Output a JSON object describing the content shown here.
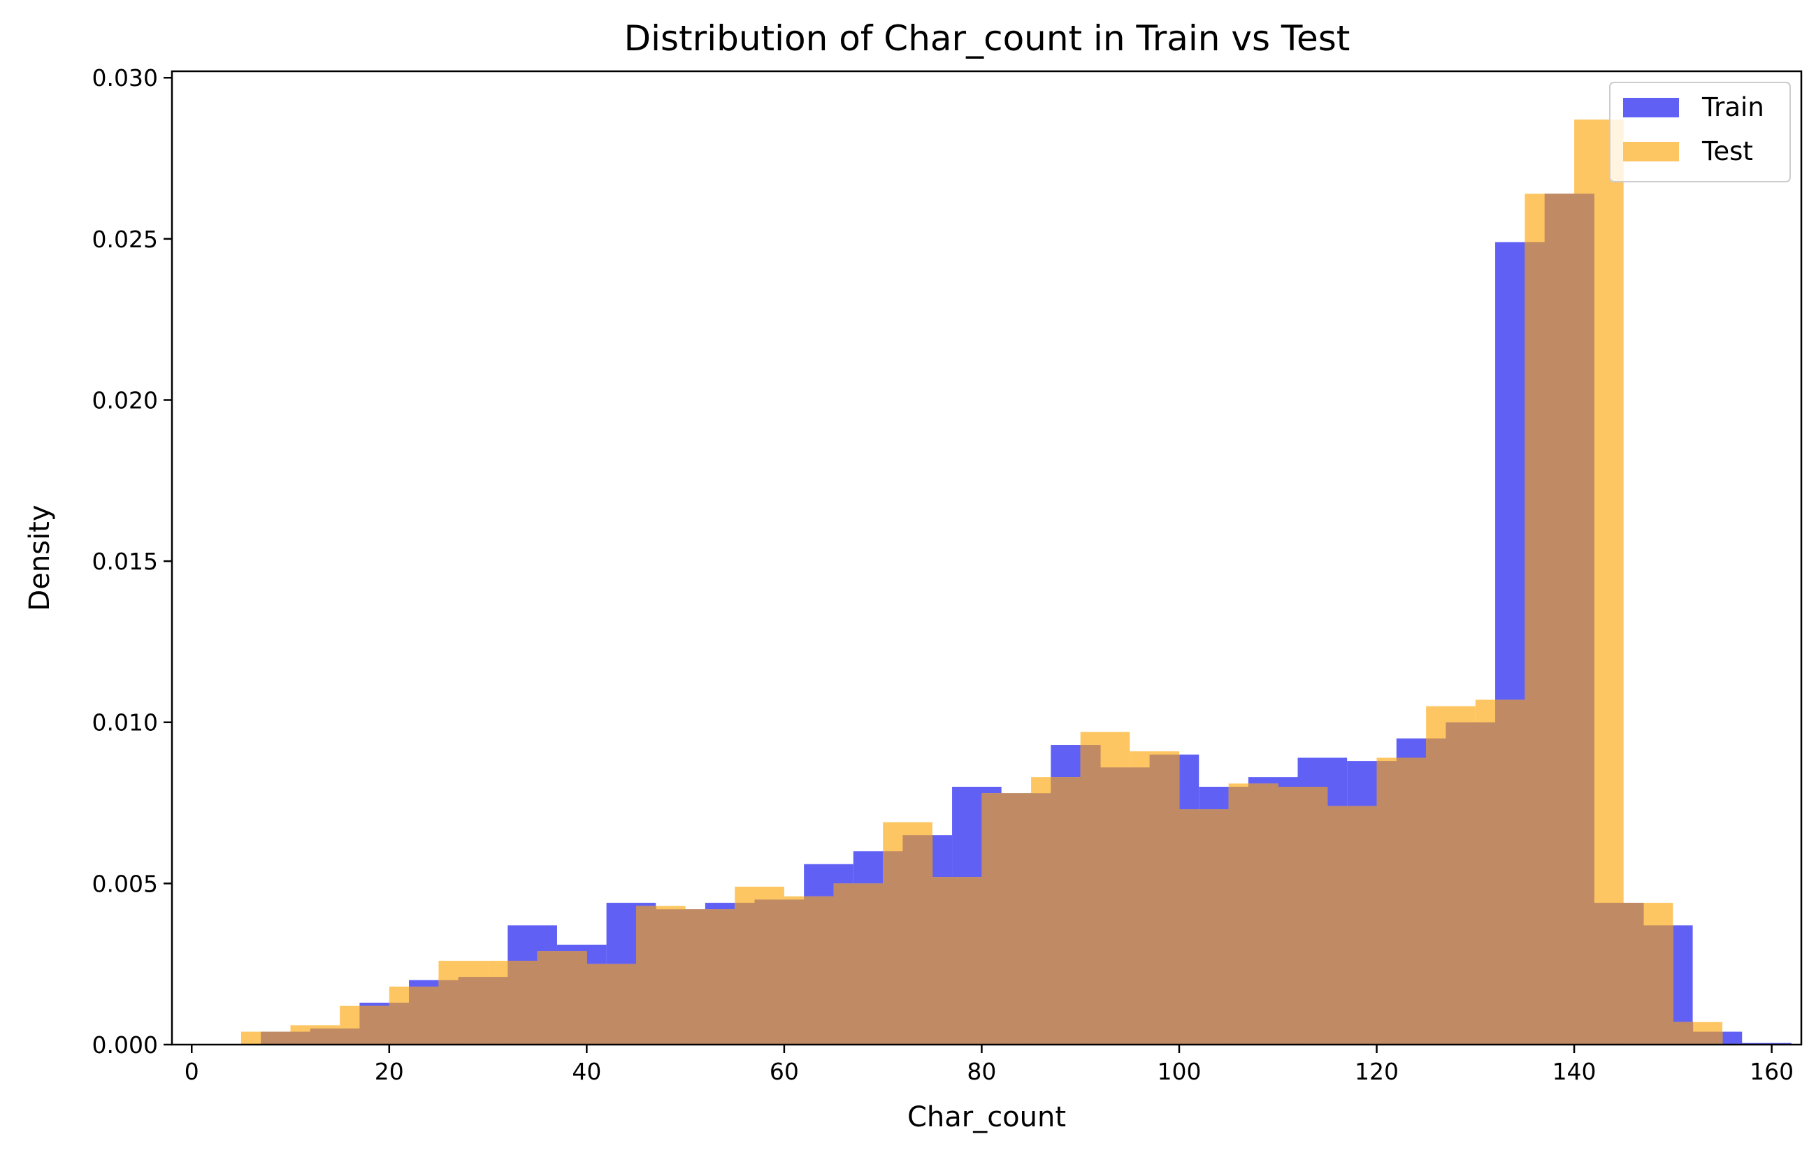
{
  "chart_data": {
    "type": "bar",
    "title": "Distribution of Char_count in Train vs Test",
    "xlabel": "Char_count",
    "ylabel": "Density",
    "xlim": [
      -2,
      163
    ],
    "ylim": [
      0,
      0.0302
    ],
    "xticks": [
      0,
      20,
      40,
      60,
      80,
      100,
      120,
      140,
      160
    ],
    "yticks": [
      0.0,
      0.005,
      0.01,
      0.015,
      0.02,
      0.025,
      0.03
    ],
    "xtick_labels": [
      "0",
      "20",
      "40",
      "60",
      "80",
      "100",
      "120",
      "140",
      "160"
    ],
    "ytick_labels": [
      "0.000",
      "0.005",
      "0.010",
      "0.015",
      "0.020",
      "0.025",
      "0.030"
    ],
    "grid": false,
    "legend_position": "top-right",
    "overlap_color": "#c08a64",
    "series": [
      {
        "name": "Train",
        "color": "#6060f5",
        "bin_start": 7.0,
        "bin_width": 5.0,
        "values": [
          0.0004,
          0.0005,
          0.0013,
          0.002,
          0.0021,
          0.0037,
          0.0031,
          0.0044,
          0.0042,
          0.0044,
          0.0045,
          0.0056,
          0.006,
          0.0065,
          0.008,
          0.0078,
          0.0093,
          0.0086,
          0.009,
          0.008,
          0.0083,
          0.0089,
          0.0088,
          0.0095,
          0.01,
          0.0249,
          0.0264,
          0.0044,
          0.0037,
          0.0004,
          5e-05
        ]
      },
      {
        "name": "Test",
        "color": "#fdc662",
        "bin_start": 5.0,
        "bin_width": 5.0,
        "values": [
          0.0004,
          0.0006,
          0.0012,
          0.0018,
          0.0026,
          0.0026,
          0.0029,
          0.0025,
          0.0043,
          0.0042,
          0.0049,
          0.0046,
          0.005,
          0.0069,
          0.0052,
          0.0078,
          0.0083,
          0.0097,
          0.0091,
          0.0073,
          0.0081,
          0.008,
          0.0074,
          0.0089,
          0.0105,
          0.0107,
          0.0264,
          0.0287,
          0.0044,
          0.0007
        ]
      }
    ]
  }
}
